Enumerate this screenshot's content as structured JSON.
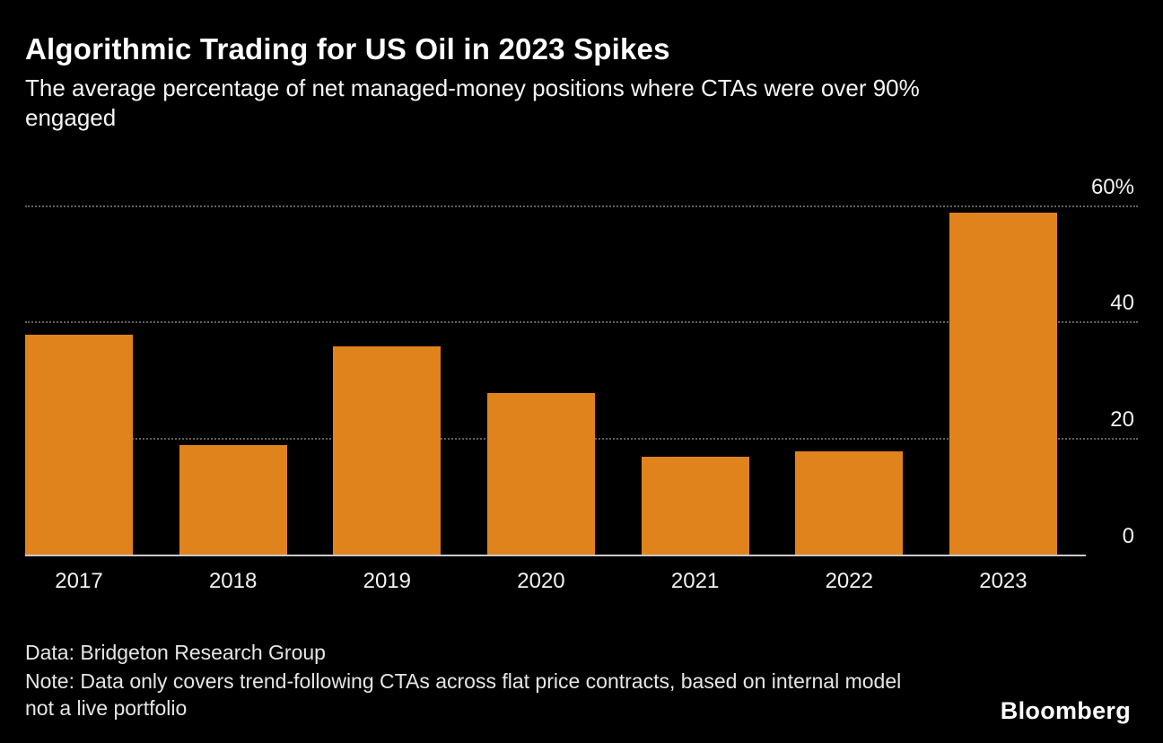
{
  "chart_data": {
    "type": "bar",
    "title": "Algorithmic Trading for US Oil in 2023 Spikes",
    "subtitle": "The average percentage of net managed-money positions where CTAs were over 90% engaged",
    "categories": [
      "2017",
      "2018",
      "2019",
      "2020",
      "2021",
      "2022",
      "2023"
    ],
    "values": [
      38,
      19,
      36,
      28,
      17,
      18,
      59
    ],
    "ylim": [
      0,
      60
    ],
    "yticks": [
      {
        "label": "60%",
        "value": 60
      },
      {
        "label": "40",
        "value": 40
      },
      {
        "label": "20",
        "value": 20
      },
      {
        "label": "0",
        "value": 0
      }
    ],
    "bar_color": "#E0831D",
    "grid": "horizontal-dotted",
    "legend": "none",
    "xlabel": "",
    "ylabel": ""
  },
  "footer": {
    "source": "Data: Bridgeton Research Group",
    "note": "Note: Data only covers trend-following CTAs across flat price contracts, based on internal model not a live portfolio",
    "brand": "Bloomberg"
  },
  "colors": {
    "background": "#000000",
    "bar": "#E0831D",
    "gridline": "#616161",
    "baseline": "#c9c9c9",
    "text": "#ffffff"
  }
}
